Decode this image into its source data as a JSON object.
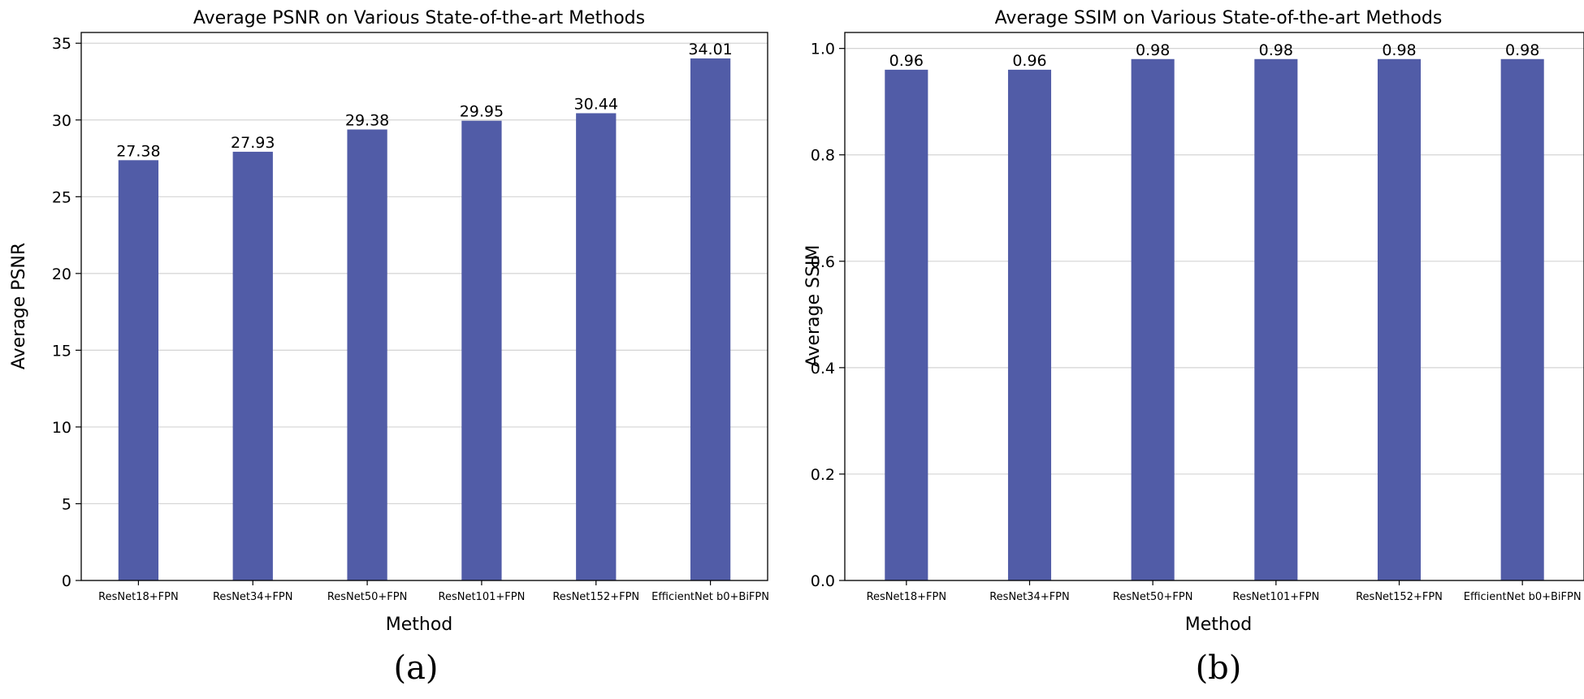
{
  "chart_data": [
    {
      "type": "bar",
      "title": "Average PSNR on Various State-of-the-art Methods",
      "xlabel": "Method",
      "ylabel": "Average PSNR",
      "categories": [
        "ResNet18+FPN",
        "ResNet34+FPN",
        "ResNet50+FPN",
        "ResNet101+FPN",
        "ResNet152+FPN",
        "EfficientNet b0+BiFPN"
      ],
      "values": [
        27.38,
        27.93,
        29.38,
        29.95,
        30.44,
        34.01
      ],
      "value_labels": [
        "27.38",
        "27.93",
        "29.38",
        "29.95",
        "30.44",
        "34.01"
      ],
      "ylim": [
        0,
        35.7
      ],
      "yticks": [
        0,
        5,
        10,
        15,
        20,
        25,
        30,
        35
      ],
      "ytick_labels": [
        "0",
        "5",
        "10",
        "15",
        "20",
        "25",
        "30",
        "35"
      ],
      "grid": true,
      "bar_color": "#515ca7",
      "caption": "(a)"
    },
    {
      "type": "bar",
      "title": "Average SSIM on Various State-of-the-art Methods",
      "xlabel": "Method",
      "ylabel": "Average SSIM",
      "categories": [
        "ResNet18+FPN",
        "ResNet34+FPN",
        "ResNet50+FPN",
        "ResNet101+FPN",
        "ResNet152+FPN",
        "EfficientNet b0+BiFPN"
      ],
      "values": [
        0.96,
        0.96,
        0.98,
        0.98,
        0.98,
        0.98
      ],
      "value_labels": [
        "0.96",
        "0.96",
        "0.98",
        "0.98",
        "0.98",
        "0.98"
      ],
      "ylim": [
        0,
        1.03
      ],
      "yticks": [
        0.0,
        0.2,
        0.4,
        0.6,
        0.8,
        1.0
      ],
      "ytick_labels": [
        "0.0",
        "0.2",
        "0.4",
        "0.6",
        "0.8",
        "1.0"
      ],
      "grid": true,
      "bar_color": "#515ca7",
      "caption": "(b)"
    }
  ]
}
